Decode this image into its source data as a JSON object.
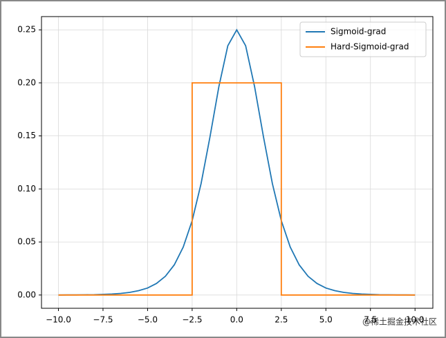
{
  "chart_data": {
    "type": "line",
    "series": [
      {
        "name": "Sigmoid-grad",
        "color": "#1f77b4",
        "x": [
          -10,
          -9.5,
          -9,
          -8.5,
          -8,
          -7.5,
          -7,
          -6.5,
          -6,
          -5.5,
          -5,
          -4.5,
          -4,
          -3.5,
          -3,
          -2.5,
          -2,
          -1.5,
          -1,
          -0.5,
          0,
          0.5,
          1,
          1.5,
          2,
          2.5,
          3,
          3.5,
          4,
          4.5,
          5,
          5.5,
          6,
          6.5,
          7,
          7.5,
          8,
          8.5,
          9,
          9.5,
          10
        ],
        "values": [
          0.0,
          0.0001,
          0.0001,
          0.0002,
          0.0003,
          0.0006,
          0.0009,
          0.0015,
          0.0025,
          0.0041,
          0.0066,
          0.0109,
          0.0177,
          0.0285,
          0.0452,
          0.0701,
          0.105,
          0.1491,
          0.1966,
          0.235,
          0.25,
          0.235,
          0.1966,
          0.1491,
          0.105,
          0.0701,
          0.0452,
          0.0285,
          0.0177,
          0.0109,
          0.0066,
          0.0041,
          0.0025,
          0.0015,
          0.0009,
          0.0006,
          0.0003,
          0.0002,
          0.0001,
          0.0001,
          0.0
        ]
      },
      {
        "name": "Hard-Sigmoid-grad",
        "color": "#ff7f0e",
        "x": [
          -10,
          -2.5,
          -2.5,
          2.5,
          2.5,
          10
        ],
        "values": [
          0,
          0,
          0.2,
          0.2,
          0,
          0
        ]
      }
    ],
    "xlim": [
      -10.95,
      11.0
    ],
    "ylim": [
      -0.0125,
      0.2625
    ],
    "xticks": [
      {
        "value": -10,
        "label": "−10.0"
      },
      {
        "value": -7.5,
        "label": "−7.5"
      },
      {
        "value": -5,
        "label": "−5.0"
      },
      {
        "value": -2.5,
        "label": "−2.5"
      },
      {
        "value": 0,
        "label": "0.0"
      },
      {
        "value": 2.5,
        "label": "2.5"
      },
      {
        "value": 5,
        "label": "5.0"
      },
      {
        "value": 7.5,
        "label": "7.5"
      },
      {
        "value": 10,
        "label": "10.0"
      }
    ],
    "yticks": [
      {
        "value": 0,
        "label": "0.00"
      },
      {
        "value": 0.05,
        "label": "0.05"
      },
      {
        "value": 0.1,
        "label": "0.10"
      },
      {
        "value": 0.15,
        "label": "0.15"
      },
      {
        "value": 0.2,
        "label": "0.20"
      },
      {
        "value": 0.25,
        "label": "0.25"
      }
    ],
    "grid": true,
    "legend": "upper right",
    "watermark": "@稀土掘金技术社区"
  }
}
